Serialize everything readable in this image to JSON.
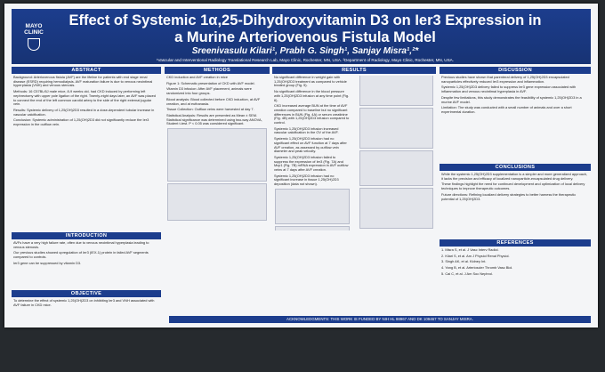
{
  "header": {
    "logo": "MAYO CLINIC",
    "title": "Effect of Systemic 1α,25-Dihydroxyvitamin D3 on Ier3 Expression in a Murine Arteriovenous Fistula Model",
    "authors": "Sreenivasulu Kilari¹, Prabh G. Singh¹, Sanjay Misra¹,²*",
    "affiliation": "¹Vascular and Interventional Radiology Translational Research Lab, Mayo Clinic, Rochester, MN, USA. ²Department of Radiology, Mayo Clinic, Rochester, MN, USA."
  },
  "sections": [
    {
      "heading": "ABSTRACT",
      "paragraphs": [
        "Background: Arteriovenous fistula (AVF) are the lifeline for patients with end stage renal disease (ESRD) requiring hemodialysis. AVF maturation failure is due to venous neointimal hyperplasia (VNH) and venous stenosis.",
        "Methods: 16 C57BL/6J male mice, 8-9 weeks old, had CKD induced by performing left nephrectomy with upper pole ligation of the right. Twenty-eight days later, an AVF was placed to connect the end of the left common carotid artery to the side of the right external jugular vein.",
        "Results: Systemic delivery of 1,25(OH)2D3 resulted in a dose-dependent tubular increase in vascular calcification.",
        "Conclusion: Systemic administration of 1,25(OH)2D3 did not significantly reduce the Ier3 expression in the outflow vein."
      ]
    },
    {
      "heading": "INTRODUCTION",
      "paragraphs": [
        "AVFs have a very high failure rate, often due to venous neointimal hyperplasia leading to venous stenosis.",
        "Our previous studies showed upregulation of Ier3 (IEX-1) protein in failed AVF segments compared to controls.",
        "Ier3 gene can be suppressed by vitamin D3."
      ]
    },
    {
      "heading": "OBJECTIVE",
      "paragraphs": [
        "To determine the effect of systemic 1,25(OH)2D3 on inhibiting Ier3 and VNH associated with AVF failure in CKD mice."
      ]
    },
    {
      "heading": "METHODS",
      "paragraphs": [
        "CKD induction and AVF creation in mice",
        "Figure 1: Schematic presentation of CKD with AVF model.",
        "Vitamin D3 infusion: After AVF placement, animals were randomized into four groups.",
        "Blood analysis: Blood collected before CKD induction, at AVF creation, and at euthanasia.",
        "Tissue Collection: Outflow veins were harvested at day 7.",
        "Statistical Analysis: Results are presented as Mean ± SEM. Statistical significance was determined using two-way ANOVA, Student t-test. P < 0.05 was considered significant."
      ]
    },
    {
      "heading": "RESULTS",
      "paragraphs": [
        "No significant difference in weight gain with 1,25(OH)2D3 treatment as compared to vehicle treated group (Fig. 5).",
        "No significant difference in the blood pressure with 1,25(OH)2D3 infusion at any time point (Fig. 6).",
        "CKD increased average BUN at the time of AVF creation compared to baseline but no significant differences in BUN (Fig. 4A) or serum creatinine (Fig. 4B) with 1,25(OH)2D3 infusion compared to control.",
        "Systemic 1,25(OH)2D3 infusion increased vascular calcification in the OV of the AVF.",
        "Systemic 1,25(OH)2D3 infusion had no significant effect on AVF function at 7 days after AVF creation, as assessed by outflow vein diameter and peak velocity.",
        "Systemic 1,25(OH)2D3 infusion failed to suppress the expression of Ier3 (Fig. 7A) and Mcp1 (Fig. 7B) mRNA expression in AVF outflow veins at 7 days after AVF creation.",
        "Systemic 1,25(OH)2D3 infusion had no significant increase in tissue 1,25(OH)2D3 deposition (data not shown)."
      ]
    },
    {
      "heading": "DISCUSSION",
      "paragraphs": [
        "Previous studies have shown that parenteral delivery of 1,25(OH)2D3 encapsulated nanoparticles effectively reduced Ier3 expression and inflammation.",
        "Systemic 1,25(OH)2D3 delivery failed to suppress Ier3 gene expression associated with inflammation and venous neointimal hyperplasia in AVF.",
        "Despite few limitations, this study demonstrates the feasibility of systemic 1,25(OH)2D3 in a murine AVF model.",
        "Limitation: The study was conducted with a small number of animals and over a short experimental duration."
      ]
    },
    {
      "heading": "CONCLUSIONS",
      "paragraphs": [
        "While the systemic 1,25(OH)2D3 supplementation is a simpler and more generalized approach, it lacks the precision and efficacy of localized nanoparticle-encapsulated drug delivery.",
        "These findings highlight the need for continued development and optimization of local delivery techniques to improve therapeutic outcomes.",
        "Future directions: Refining localized delivery strategies to better harness the therapeutic potential of 1,25(OH)2D3."
      ]
    },
    {
      "heading": "REFERENCES",
      "paragraphs": [
        "1. Misra S, et al. J Vasc Interv Radiol.",
        "2. Kilari S, et al. Am J Physiol Renal Physiol.",
        "3. Singh AK, et al. Kidney Int.",
        "4. Yang B, et al. Arterioscler Thromb Vasc Biol.",
        "5. Cai C, et al. J Am Soc Nephrol."
      ]
    }
  ],
  "acknowledgments": "ACKNOWLEDGMENTS: THIS WORK IS FUNDED BY NIH HL 98967 AND DK 109467 TO SANJAY MISRA."
}
